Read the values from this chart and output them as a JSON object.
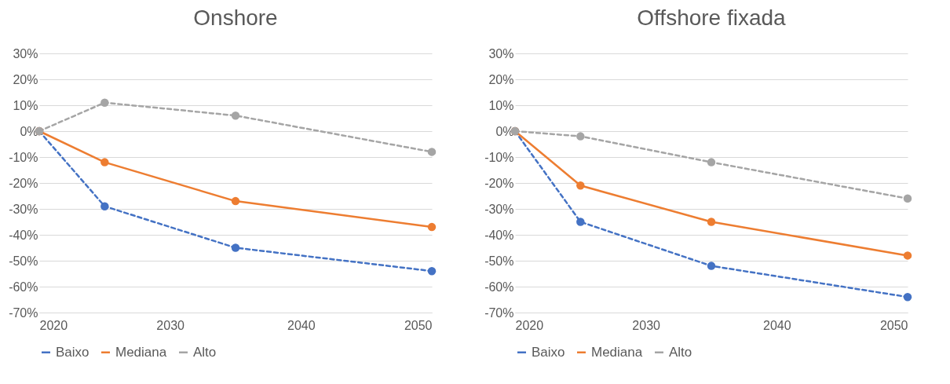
{
  "chart_data": [
    {
      "type": "line",
      "title": "Onshore",
      "x": [
        2020,
        2025,
        2035,
        2050
      ],
      "xlim": [
        2020,
        2050
      ],
      "xticks": [
        2020,
        2030,
        2040,
        2050
      ],
      "ylim": [
        -70,
        30
      ],
      "yticks": [
        {
          "value": 30,
          "label": "30%"
        },
        {
          "value": 20,
          "label": "20%"
        },
        {
          "value": 10,
          "label": "10%"
        },
        {
          "value": 0,
          "label": "0%"
        },
        {
          "value": -10,
          "label": "-10%"
        },
        {
          "value": -20,
          "label": "-20%"
        },
        {
          "value": -30,
          "label": "-30%"
        },
        {
          "value": -40,
          "label": "-40%"
        },
        {
          "value": -50,
          "label": "-50%"
        },
        {
          "value": -60,
          "label": "-60%"
        },
        {
          "value": -70,
          "label": "-70%"
        }
      ],
      "grid": "y",
      "legend": "bottom",
      "marker": "circle",
      "series": [
        {
          "name": "Baixo",
          "color": "#4472c4",
          "line_style": "dashed",
          "values": [
            0,
            -29,
            -45,
            -54
          ]
        },
        {
          "name": "Mediana",
          "color": "#ed7d31",
          "line_style": "solid",
          "values": [
            0,
            -12,
            -27,
            -37
          ]
        },
        {
          "name": "Alto",
          "color": "#a5a5a5",
          "line_style": "dashed",
          "values": [
            0,
            11,
            6,
            -8
          ]
        }
      ]
    },
    {
      "type": "line",
      "title": "Offshore fixada",
      "x": [
        2020,
        2025,
        2035,
        2050
      ],
      "xlim": [
        2020,
        2050
      ],
      "xticks": [
        2020,
        2030,
        2040,
        2050
      ],
      "ylim": [
        -70,
        30
      ],
      "yticks": [
        {
          "value": 30,
          "label": "30%"
        },
        {
          "value": 20,
          "label": "20%"
        },
        {
          "value": 10,
          "label": "10%"
        },
        {
          "value": 0,
          "label": "0%"
        },
        {
          "value": -10,
          "label": "-10%"
        },
        {
          "value": -20,
          "label": "-20%"
        },
        {
          "value": -30,
          "label": "-30%"
        },
        {
          "value": -40,
          "label": "-40%"
        },
        {
          "value": -50,
          "label": "-50%"
        },
        {
          "value": -60,
          "label": "-60%"
        },
        {
          "value": -70,
          "label": "-70%"
        }
      ],
      "grid": "y",
      "legend": "bottom",
      "marker": "circle",
      "series": [
        {
          "name": "Baixo",
          "color": "#4472c4",
          "line_style": "dashed",
          "values": [
            0,
            -35,
            -52,
            -64
          ]
        },
        {
          "name": "Mediana",
          "color": "#ed7d31",
          "line_style": "solid",
          "values": [
            0,
            -21,
            -35,
            -48
          ]
        },
        {
          "name": "Alto",
          "color": "#a5a5a5",
          "line_style": "dashed",
          "values": [
            0,
            -2,
            -12,
            -26
          ]
        }
      ]
    }
  ]
}
